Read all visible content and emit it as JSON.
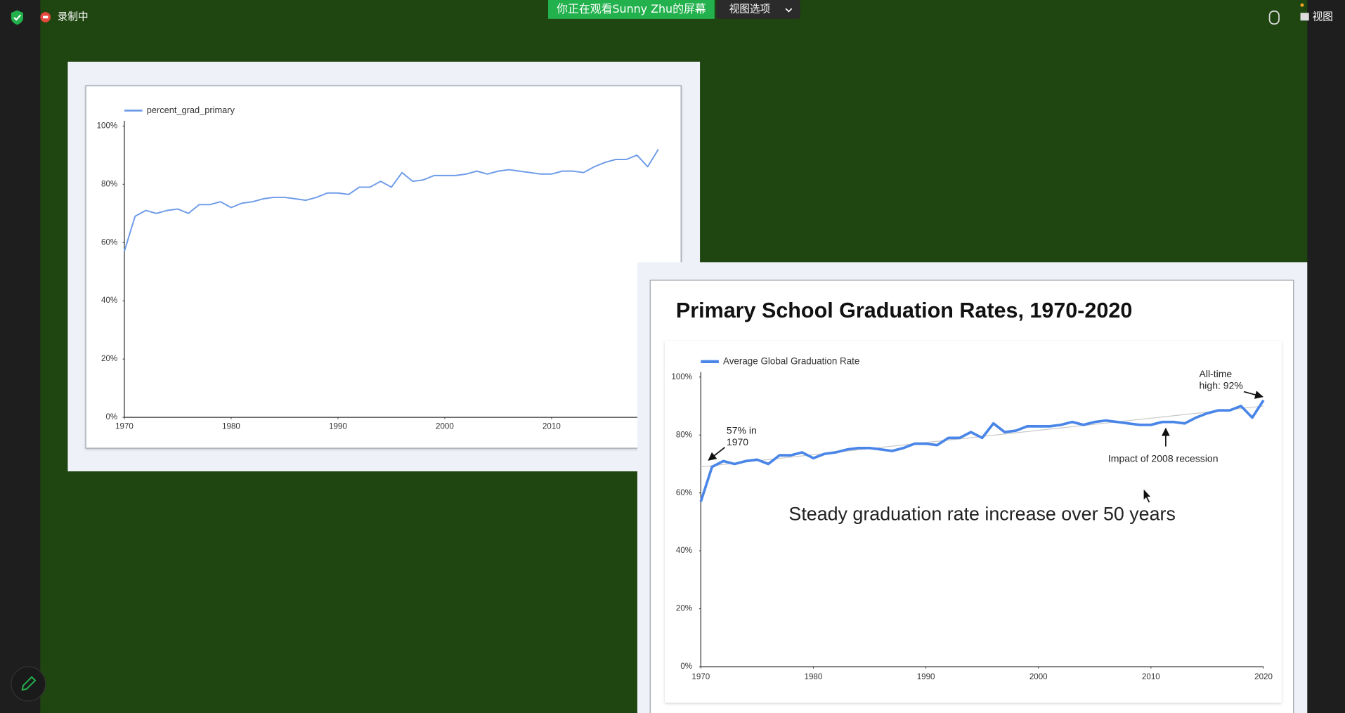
{
  "toolbar": {
    "recording": "录制中",
    "viewing": "你正在观看Sunny  Zhu的屏幕",
    "view_options": "视图选项",
    "view": "视图"
  },
  "slide": {
    "title": "Primary School Graduation Rates, 1970-2020"
  },
  "chart_data": [
    {
      "type": "line",
      "x": [
        1970,
        1971,
        1972,
        1973,
        1974,
        1975,
        1976,
        1977,
        1978,
        1979,
        1980,
        1981,
        1982,
        1983,
        1984,
        1985,
        1986,
        1987,
        1988,
        1989,
        1990,
        1991,
        1992,
        1993,
        1994,
        1995,
        1996,
        1997,
        1998,
        1999,
        2000,
        2001,
        2002,
        2003,
        2004,
        2005,
        2006,
        2007,
        2008,
        2009,
        2010,
        2011,
        2012,
        2013,
        2014,
        2015,
        2016,
        2017,
        2018,
        2019,
        2020
      ],
      "series": [
        {
          "name": "percent_grad_primary",
          "color": "#6e9be8",
          "values": [
            57,
            69,
            71,
            70,
            71,
            71.5,
            70,
            73,
            73,
            74,
            72,
            73.5,
            74,
            75,
            75.5,
            75.5,
            75,
            74.5,
            75.5,
            77,
            77,
            76.5,
            79,
            79,
            81,
            79,
            84,
            81,
            81.5,
            83,
            83,
            83,
            83.5,
            84.5,
            83.5,
            84.5,
            85,
            84.5,
            84,
            83.5,
            83.5,
            84.5,
            84.5,
            84,
            86,
            87.5,
            88.5,
            88.5,
            90,
            86,
            92
          ]
        }
      ],
      "xlim": [
        1970,
        2020
      ],
      "xticks": [
        1970,
        1980,
        1990,
        2000,
        2010
      ],
      "ylim": [
        0,
        100
      ],
      "yticks": [
        {
          "value": 0,
          "label": "0%"
        },
        {
          "value": 20,
          "label": "20%"
        },
        {
          "value": 40,
          "label": "40%"
        },
        {
          "value": 60,
          "label": "60%"
        },
        {
          "value": 80,
          "label": "80%"
        },
        {
          "value": 100,
          "label": "100%"
        }
      ],
      "grid": false
    },
    {
      "type": "line",
      "x": [
        1970,
        1971,
        1972,
        1973,
        1974,
        1975,
        1976,
        1977,
        1978,
        1979,
        1980,
        1981,
        1982,
        1983,
        1984,
        1985,
        1986,
        1987,
        1988,
        1989,
        1990,
        1991,
        1992,
        1993,
        1994,
        1995,
        1996,
        1997,
        1998,
        1999,
        2000,
        2001,
        2002,
        2003,
        2004,
        2005,
        2006,
        2007,
        2008,
        2009,
        2010,
        2011,
        2012,
        2013,
        2014,
        2015,
        2016,
        2017,
        2018,
        2019,
        2020
      ],
      "series": [
        {
          "name": "Average Global Graduation Rate",
          "color": "#4a86e8",
          "values": [
            57,
            69,
            71,
            70,
            71,
            71.5,
            70,
            73,
            73,
            74,
            72,
            73.5,
            74,
            75,
            75.5,
            75.5,
            75,
            74.5,
            75.5,
            77,
            77,
            76.5,
            79,
            79,
            81,
            79,
            84,
            81,
            81.5,
            83,
            83,
            83,
            83.5,
            84.5,
            83.5,
            84.5,
            85,
            84.5,
            84,
            83.5,
            83.5,
            84.5,
            84.5,
            84,
            86,
            87.5,
            88.5,
            88.5,
            90,
            86,
            92
          ]
        }
      ],
      "trendline": {
        "x": [
          1970,
          2020
        ],
        "values": [
          69,
          90
        ]
      },
      "xlim": [
        1970,
        2020
      ],
      "xticks": [
        1970,
        1980,
        1990,
        2000,
        2010,
        2020
      ],
      "ylim": [
        0,
        100
      ],
      "yticks": [
        {
          "value": 0,
          "label": "0%"
        },
        {
          "value": 20,
          "label": "20%"
        },
        {
          "value": 40,
          "label": "40%"
        },
        {
          "value": 60,
          "label": "60%"
        },
        {
          "value": 80,
          "label": "80%"
        },
        {
          "value": 100,
          "label": "100%"
        }
      ],
      "grid": false,
      "annotations": [
        {
          "lines": [
            "57% in",
            "1970"
          ]
        },
        {
          "lines": [
            "All-time",
            "high: 92%"
          ]
        },
        {
          "lines": [
            "Impact of 2008 recession"
          ]
        },
        {
          "lines": [
            "Steady graduation rate increase over 50 years"
          ]
        }
      ]
    }
  ]
}
